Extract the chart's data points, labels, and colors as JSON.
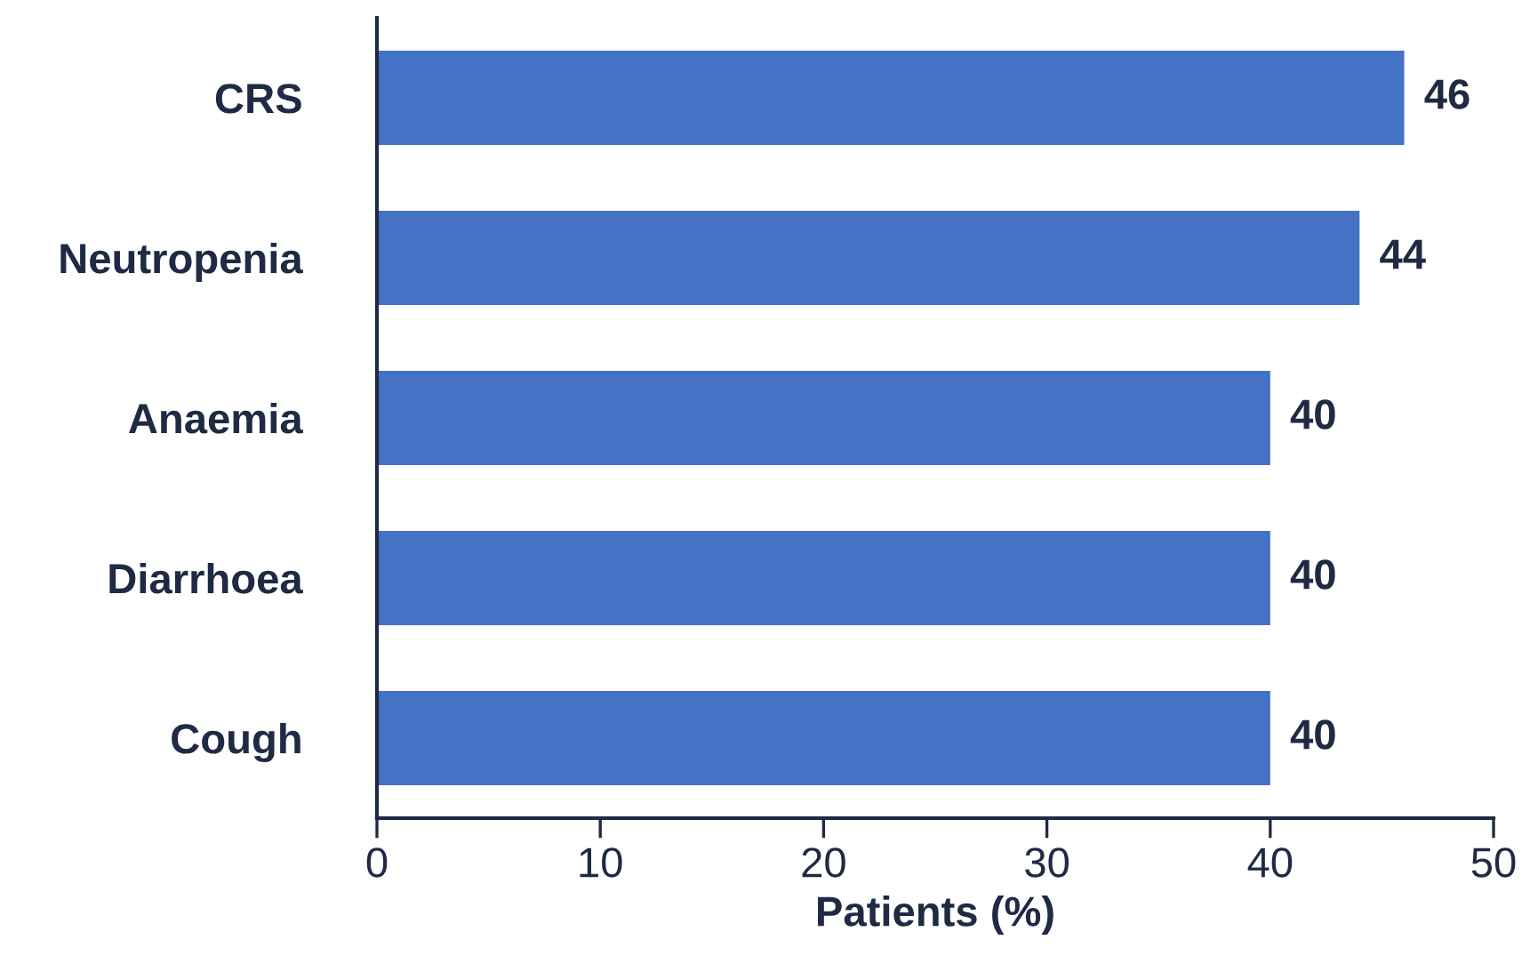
{
  "chart_data": {
    "type": "bar",
    "orientation": "horizontal",
    "xlabel": "Patients (%)",
    "categories": [
      "CRS",
      "Neutropenia",
      "Anaemia",
      "Diarrhoea",
      "Cough"
    ],
    "values": [
      46,
      44,
      40,
      40,
      40
    ],
    "color": "#4472c4",
    "xlim": [
      0,
      50
    ],
    "xticks": [
      0,
      10,
      20,
      30,
      40,
      50
    ],
    "data_labels": true,
    "grid": false,
    "legend": false
  }
}
